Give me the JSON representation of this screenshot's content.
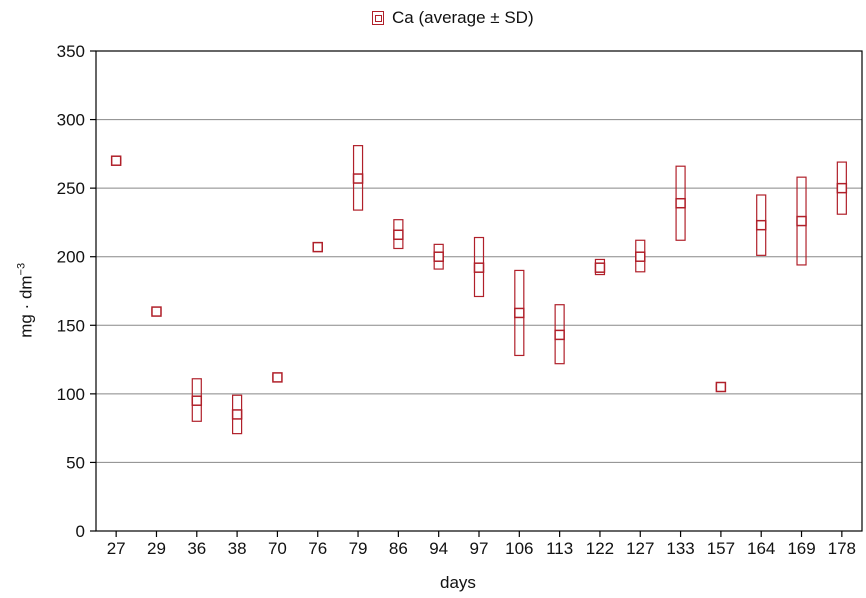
{
  "chart_data": {
    "type": "scatter",
    "legend": {
      "label": "Ca (average ± SD)",
      "position": "top"
    },
    "xlabel": "days",
    "ylabel": {
      "base": "mg · dm",
      "exponent": "−3"
    },
    "ylim": [
      0,
      350
    ],
    "yticks": [
      0,
      50,
      100,
      150,
      200,
      250,
      300,
      350
    ],
    "grid": true,
    "categories": [
      "27",
      "29",
      "36",
      "38",
      "70",
      "76",
      "79",
      "86",
      "94",
      "97",
      "106",
      "113",
      "122",
      "127",
      "133",
      "157",
      "164",
      "169",
      "178"
    ],
    "series": [
      {
        "name": "Ca",
        "mean": [
          270,
          160,
          95,
          85,
          112,
          207,
          257,
          216,
          200,
          192,
          159,
          143,
          192,
          200,
          239,
          105,
          223,
          226,
          250
        ],
        "low": [
          268,
          158,
          80,
          71,
          110,
          205,
          234,
          206,
          191,
          171,
          128,
          122,
          187,
          189,
          212,
          103,
          201,
          194,
          231
        ],
        "high": [
          272,
          162,
          111,
          99,
          114,
          209,
          281,
          227,
          209,
          214,
          190,
          165,
          198,
          212,
          266,
          107,
          245,
          258,
          269
        ]
      }
    ],
    "color": "#b0202a"
  }
}
